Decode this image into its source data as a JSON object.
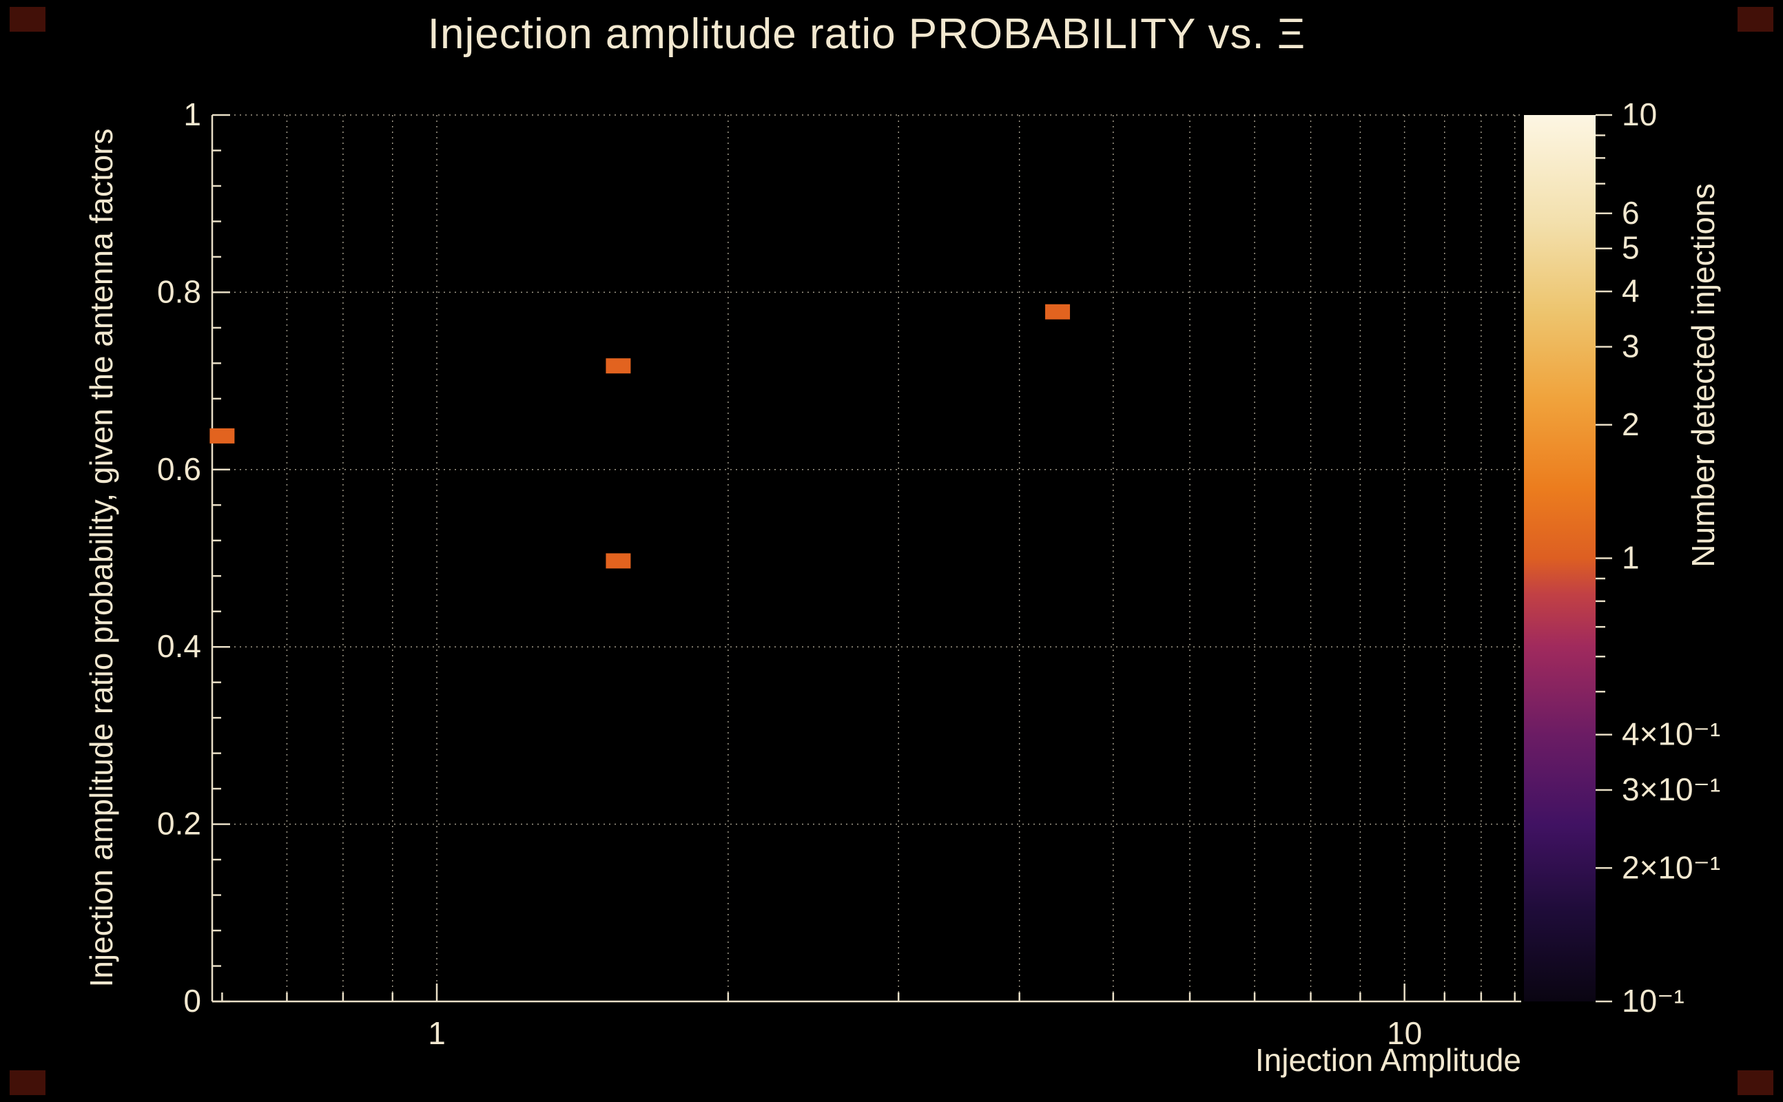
{
  "page": {
    "background": "#000000",
    "text_color": "#f2e8d0",
    "axis_color": "#e8dec6",
    "grid_color": "#d8cfb8",
    "corner_marker_color": "#421008"
  },
  "chart_data": {
    "type": "scatter",
    "title": "Injection amplitude ratio PROBABILITY vs.  Ξ",
    "xlabel": "Injection Amplitude",
    "ylabel": "Injection amplitude ratio probability, given the antenna factors",
    "zlabel": "Number detected injections",
    "x_scale": "log",
    "x_range": [
      0.586,
      13.2
    ],
    "y_range": [
      0,
      1
    ],
    "grid": true,
    "x_major_ticks": [
      {
        "value": 1,
        "label": "1"
      },
      {
        "value": 10,
        "label": "10"
      }
    ],
    "x_minor_ticks": [
      0.6,
      0.7,
      0.8,
      0.9,
      2,
      3,
      4,
      5,
      6,
      7,
      8,
      9,
      11,
      12,
      13
    ],
    "x_grid": [
      0.7,
      0.8,
      0.9,
      1,
      2,
      3,
      4,
      5,
      6,
      7,
      8,
      9,
      10,
      11,
      12,
      13
    ],
    "y_major_ticks": [
      {
        "value": 0,
        "label": "0"
      },
      {
        "value": 0.2,
        "label": "0.2"
      },
      {
        "value": 0.4,
        "label": "0.4"
      },
      {
        "value": 0.6,
        "label": "0.6"
      },
      {
        "value": 0.8,
        "label": "0.8"
      },
      {
        "value": 1,
        "label": "1"
      }
    ],
    "y_minor_step": 0.04,
    "y_grid": [
      0.2,
      0.4,
      0.6,
      0.8,
      1.0
    ],
    "points": [
      {
        "x": 0.6,
        "y": 0.638,
        "value": 1
      },
      {
        "x": 1.54,
        "y": 0.717,
        "value": 1
      },
      {
        "x": 1.54,
        "y": 0.497,
        "value": 1
      },
      {
        "x": 4.38,
        "y": 0.778,
        "value": 1
      }
    ],
    "point_color": "#e2631f",
    "colorbar": {
      "scale": "log",
      "range": [
        0.1,
        10
      ],
      "ticks": [
        {
          "v": 10,
          "label": "10"
        },
        {
          "v": 9
        },
        {
          "v": 8
        },
        {
          "v": 7
        },
        {
          "v": 6,
          "label": "6"
        },
        {
          "v": 5,
          "label": "5"
        },
        {
          "v": 4,
          "label": "4"
        },
        {
          "v": 3,
          "label": "3"
        },
        {
          "v": 2,
          "label": "2"
        },
        {
          "v": 1,
          "label": "1"
        },
        {
          "v": 0.9
        },
        {
          "v": 0.8
        },
        {
          "v": 0.7
        },
        {
          "v": 0.6
        },
        {
          "v": 0.5
        },
        {
          "v": 0.4,
          "label": "4×10⁻¹"
        },
        {
          "v": 0.3,
          "label": "3×10⁻¹"
        },
        {
          "v": 0.2,
          "label": "2×10⁻¹"
        },
        {
          "v": 0.1,
          "label": "10⁻¹"
        }
      ],
      "gradient_stops": [
        {
          "pos": 0,
          "color": "#0a0512"
        },
        {
          "pos": 10,
          "color": "#1e0c38"
        },
        {
          "pos": 20,
          "color": "#411263"
        },
        {
          "pos": 30,
          "color": "#6b1c64"
        },
        {
          "pos": 40,
          "color": "#a02a5d"
        },
        {
          "pos": 46,
          "color": "#c24144"
        },
        {
          "pos": 50,
          "color": "#dd5f22"
        },
        {
          "pos": 58,
          "color": "#ec7d1e"
        },
        {
          "pos": 68,
          "color": "#f0a33c"
        },
        {
          "pos": 78,
          "color": "#edc56f"
        },
        {
          "pos": 88,
          "color": "#f3e0ad"
        },
        {
          "pos": 100,
          "color": "#fdf6e3"
        }
      ]
    }
  }
}
